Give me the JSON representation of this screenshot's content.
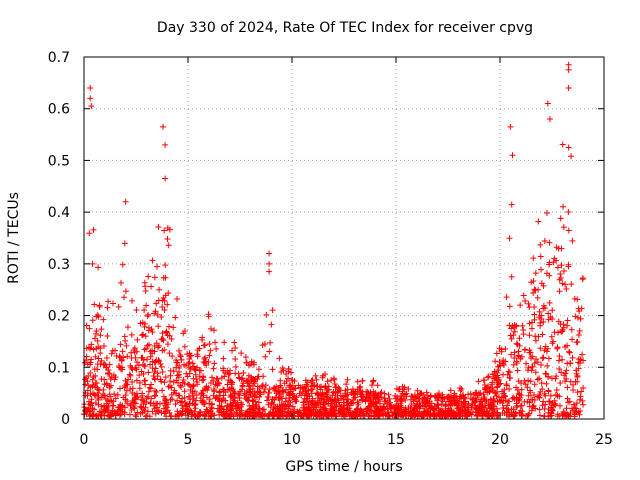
{
  "chart_data": {
    "type": "scatter",
    "title": "Day 330 of 2024, Rate Of TEC Index for receiver cpvg",
    "xlabel": "GPS time / hours",
    "ylabel": "ROTI / TECUs",
    "xlim": [
      0,
      25
    ],
    "ylim": [
      0,
      0.7
    ],
    "xticks": [
      0,
      5,
      10,
      15,
      20,
      25
    ],
    "yticks": [
      0,
      0.1,
      0.2,
      0.3,
      0.4,
      0.5,
      0.6,
      0.7
    ],
    "xtick_labels": [
      "0",
      "5",
      "10",
      "15",
      "20",
      "25"
    ],
    "ytick_labels": [
      "0",
      "0.1",
      "0.2",
      "0.3",
      "0.4",
      "0.5",
      "0.6",
      "0.7"
    ],
    "grid": true,
    "marker": "+",
    "color": "#ff0000",
    "series": [
      {
        "name": "ROTI",
        "envelope": {
          "description": "approximate point density envelope: [hour, typical_max, peak_max]",
          "points": [
            [
              0.0,
              0.12,
              0.2
            ],
            [
              0.3,
              0.2,
              0.44
            ],
            [
              0.6,
              0.18,
              0.36
            ],
            [
              1.0,
              0.14,
              0.26
            ],
            [
              1.5,
              0.13,
              0.24
            ],
            [
              2.0,
              0.15,
              0.42
            ],
            [
              2.5,
              0.14,
              0.23
            ],
            [
              3.0,
              0.2,
              0.3
            ],
            [
              3.5,
              0.22,
              0.45
            ],
            [
              3.8,
              0.3,
              0.57
            ],
            [
              4.2,
              0.25,
              0.43
            ],
            [
              4.6,
              0.16,
              0.26
            ],
            [
              5.0,
              0.11,
              0.14
            ],
            [
              5.5,
              0.1,
              0.14
            ],
            [
              6.0,
              0.13,
              0.25
            ],
            [
              6.5,
              0.09,
              0.15
            ],
            [
              7.0,
              0.09,
              0.18
            ],
            [
              7.5,
              0.08,
              0.14
            ],
            [
              8.0,
              0.07,
              0.12
            ],
            [
              8.5,
              0.08,
              0.11
            ],
            [
              8.9,
              0.06,
              0.32
            ],
            [
              9.5,
              0.06,
              0.12
            ],
            [
              10.0,
              0.06,
              0.1
            ],
            [
              10.5,
              0.06,
              0.11
            ],
            [
              11.0,
              0.06,
              0.1
            ],
            [
              12.0,
              0.06,
              0.09
            ],
            [
              13.0,
              0.05,
              0.09
            ],
            [
              14.0,
              0.05,
              0.08
            ],
            [
              15.0,
              0.04,
              0.07
            ],
            [
              16.0,
              0.04,
              0.06
            ],
            [
              17.0,
              0.04,
              0.06
            ],
            [
              18.0,
              0.04,
              0.07
            ],
            [
              19.0,
              0.05,
              0.08
            ],
            [
              19.5,
              0.06,
              0.09
            ],
            [
              20.0,
              0.1,
              0.16
            ],
            [
              20.4,
              0.18,
              0.57
            ],
            [
              20.8,
              0.18,
              0.3
            ],
            [
              21.2,
              0.2,
              0.3
            ],
            [
              21.6,
              0.25,
              0.34
            ],
            [
              22.0,
              0.28,
              0.52
            ],
            [
              22.4,
              0.32,
              0.61
            ],
            [
              22.8,
              0.3,
              0.45
            ],
            [
              23.2,
              0.3,
              0.68
            ],
            [
              23.6,
              0.26,
              0.45
            ],
            [
              23.9,
              0.2,
              0.3
            ]
          ]
        },
        "notable_points": [
          [
            0.3,
            0.64
          ],
          [
            0.3,
            0.62
          ],
          [
            0.35,
            0.605
          ],
          [
            2.0,
            0.42
          ],
          [
            3.8,
            0.565
          ],
          [
            3.9,
            0.53
          ],
          [
            8.9,
            0.32
          ],
          [
            8.9,
            0.3
          ],
          [
            8.9,
            0.285
          ],
          [
            20.5,
            0.565
          ],
          [
            20.6,
            0.51
          ],
          [
            22.3,
            0.61
          ],
          [
            22.4,
            0.58
          ],
          [
            23.3,
            0.685
          ],
          [
            23.3,
            0.675
          ],
          [
            23.3,
            0.64
          ],
          [
            23.3,
            0.525
          ]
        ]
      }
    ]
  }
}
